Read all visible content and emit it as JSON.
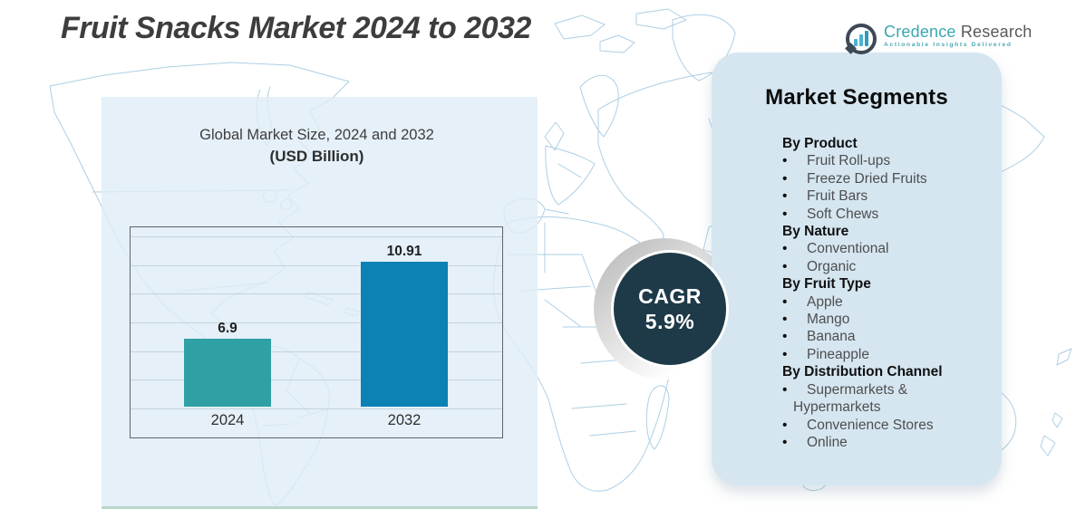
{
  "title": "Fruit Snacks Market 2024 to 2032",
  "logo": {
    "brand_primary": "Credence",
    "brand_secondary": "Research",
    "tagline": "Actionable Insights Delivered"
  },
  "chart_data": {
    "type": "bar",
    "title": "Global Market Size, 2024 and 2032",
    "subtitle": "(USD Billion)",
    "categories": [
      "2024",
      "2032"
    ],
    "values": [
      6.9,
      10.91
    ],
    "value_labels": [
      "6.9",
      "10.91"
    ],
    "bar_colors": [
      "#2FA1A4",
      "#0B81B4"
    ],
    "xlabel": "",
    "ylabel": "USD Billion",
    "layout": {
      "grid_on": true,
      "gridline_count": 7,
      "legend": "none",
      "ylim_render_hint": [
        3.4,
        12.3
      ]
    }
  },
  "cagr": {
    "label": "CAGR",
    "value": "5.9%"
  },
  "segments": {
    "title": "Market Segments",
    "bullet": "•",
    "groups": [
      {
        "heading": "By Product",
        "items": [
          "Fruit Roll-ups",
          "Freeze Dried Fruits",
          "Fruit Bars",
          "Soft Chews"
        ]
      },
      {
        "heading": "By Nature",
        "items": [
          "Conventional",
          "Organic"
        ]
      },
      {
        "heading": "By Fruit Type",
        "items": [
          "Apple",
          "Mango",
          "Banana",
          "Pineapple"
        ]
      },
      {
        "heading": "By Distribution Channel",
        "items": [
          "Supermarkets & Hypermarkets",
          "Convenience Stores",
          "Online"
        ]
      }
    ]
  },
  "colors": {
    "bar_teal": "#2FA1A4",
    "bar_blue": "#0B81B4",
    "cagr_navy": "#1E3A48",
    "panel_bg": "#D5E6F1",
    "overlay_bg": "#DFEDF7",
    "overlay_bottom_strip": "#B9D8CA",
    "map_stroke": "#AECFE4",
    "brand_teal": "#3BA7B0",
    "brand_gray": "#58595B",
    "title_text": "#3D3D3F"
  }
}
